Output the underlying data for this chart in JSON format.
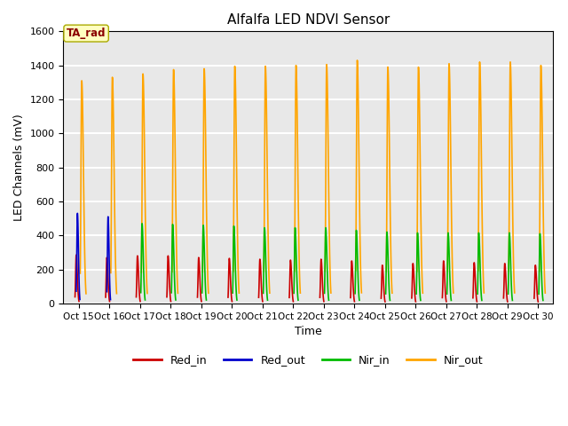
{
  "title": "Alfalfa LED NDVI Sensor",
  "ylabel": "LED Channels (mV)",
  "xlabel": "Time",
  "ylim": [
    0,
    1600
  ],
  "yticks": [
    0,
    200,
    400,
    600,
    800,
    1000,
    1200,
    1400,
    1600
  ],
  "xtick_labels": [
    "Oct 15",
    "Oct 16",
    "Oct 17",
    "Oct 18",
    "Oct 19",
    "Oct 20",
    "Oct 21",
    "Oct 22",
    "Oct 23",
    "Oct 24",
    "Oct 25",
    "Oct 26",
    "Oct 27",
    "Oct 28",
    "Oct 29",
    "Oct 30"
  ],
  "annotation_label": "TA_rad",
  "annotation_color": "#8B0000",
  "annotation_bg": "#FFFFC0",
  "background_color": "#E8E8E8",
  "grid_color": "white",
  "colors": {
    "Red_in": "#CC0000",
    "Red_out": "#0000CC",
    "Nir_in": "#00BB00",
    "Nir_out": "#FFA500"
  },
  "nir_out_peaks": [
    1310,
    1330,
    1350,
    1375,
    1380,
    1395,
    1395,
    1400,
    1405,
    1430,
    1390,
    1390,
    1410,
    1420,
    1420,
    1400
  ],
  "red_in_peaks": [
    285,
    270,
    280,
    280,
    270,
    265,
    260,
    255,
    260,
    250,
    225,
    235,
    250,
    240,
    235,
    225
  ],
  "red_out_peaks": [
    530,
    510,
    0,
    0,
    0,
    0,
    0,
    0,
    0,
    0,
    0,
    0,
    0,
    0,
    0,
    0
  ],
  "nir_in_peaks": [
    0,
    0,
    470,
    465,
    460,
    455,
    445,
    445,
    445,
    430,
    420,
    415,
    415,
    415,
    415,
    410
  ],
  "n_cycles": 16,
  "figsize": [
    6.4,
    4.8
  ],
  "dpi": 100
}
